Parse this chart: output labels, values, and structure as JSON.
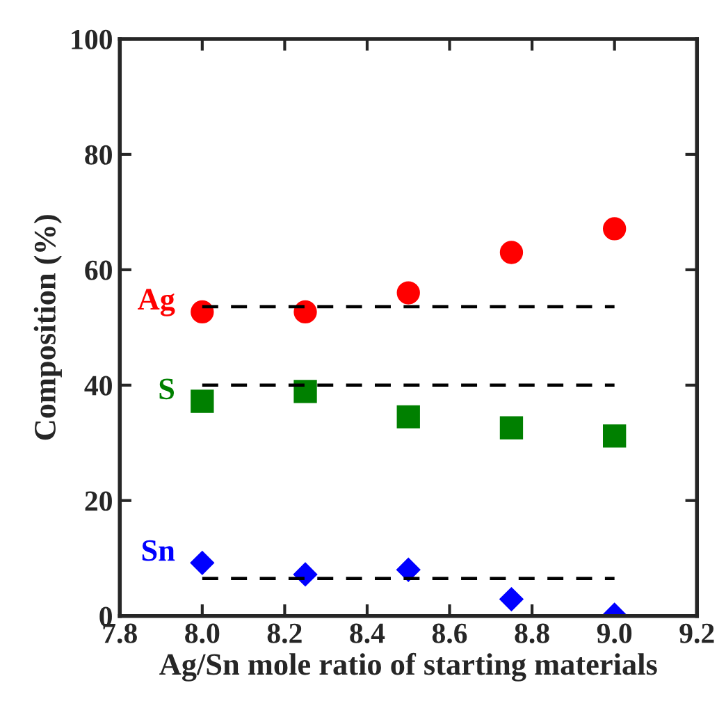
{
  "chart_data": {
    "type": "scatter",
    "xlabel": "Ag/Sn mole ratio of starting materials",
    "ylabel": "Composition (%)",
    "x": [
      8.0,
      8.25,
      8.5,
      8.75,
      9.0
    ],
    "series": [
      {
        "name": "Ag",
        "color": "#ff0000",
        "marker": "circle",
        "values": [
          52.7,
          52.7,
          56.0,
          63.0,
          67.1
        ]
      },
      {
        "name": "S",
        "color": "#008000",
        "marker": "square",
        "values": [
          37.2,
          38.9,
          34.5,
          32.6,
          31.2
        ]
      },
      {
        "name": "Sn",
        "color": "#0000ff",
        "marker": "diamond",
        "values": [
          9.2,
          7.2,
          8.0,
          2.9,
          0.2
        ]
      },
      {
        "type": "line",
        "color": "#000000",
        "line_style": "dashed",
        "marker": "none",
        "values": [
          53.6,
          53.6,
          53.6,
          53.6,
          53.6
        ]
      },
      {
        "type": "line",
        "color": "#000000",
        "line_style": "dashed",
        "marker": "none",
        "values": [
          40,
          40,
          40,
          40,
          40
        ]
      },
      {
        "type": "line",
        "color": "#000000",
        "line_style": "dashed",
        "marker": "none",
        "values": [
          6.5,
          6.5,
          6.5,
          6.5,
          6.5
        ]
      }
    ],
    "xlim": [
      7.8,
      9.2
    ],
    "xticks": [
      7.8,
      {
        "value": 8.0,
        "label": "8.0"
      },
      8.2,
      8.4,
      8.6,
      8.8,
      {
        "value": 9.0,
        "label": "9.0"
      },
      9.2
    ],
    "ylim": [
      0,
      100
    ],
    "yticks": [
      0,
      20,
      40,
      60,
      80,
      100
    ],
    "grid": false,
    "legend": false
  }
}
